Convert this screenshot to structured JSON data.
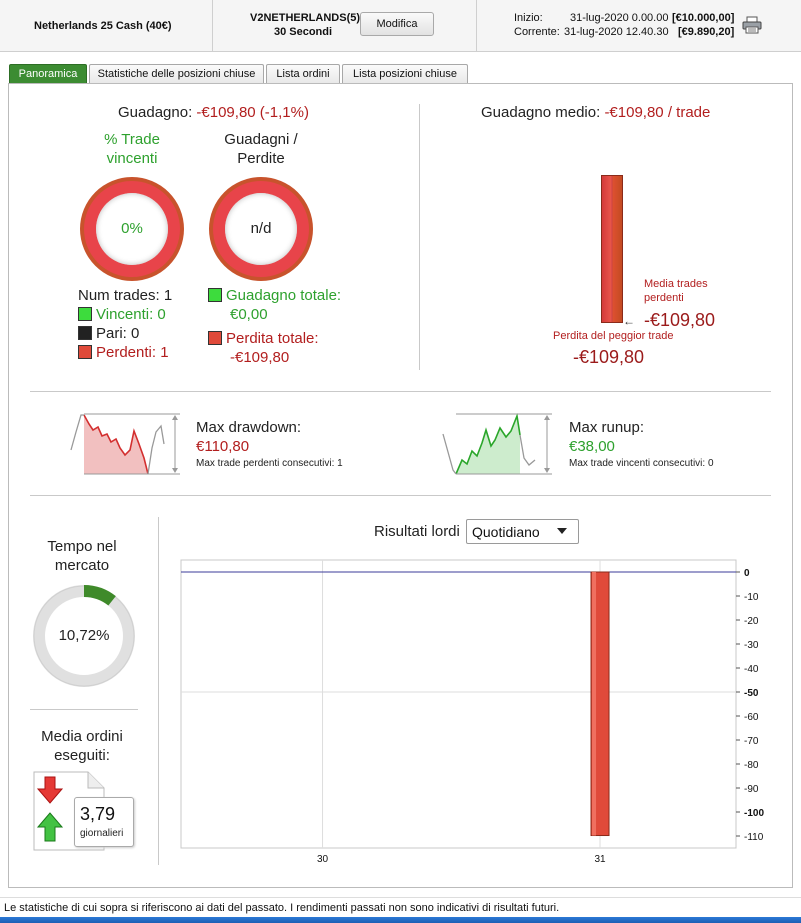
{
  "header": {
    "instrument": "Netherlands 25 Cash (40€)",
    "strategy_name": "V2NETHERLANDS(5)",
    "timeframe": "30 Secondi",
    "modify_button": "Modifica",
    "start_label": "Inizio:",
    "start_date": "31-lug-2020 0.00.00",
    "start_value": "[€10.000,00]",
    "current_label": "Corrente:",
    "current_date": "31-lug-2020 12.40.30",
    "current_value": "[€9.890,20]"
  },
  "tabs": [
    {
      "label": "Panoramica",
      "active": true
    },
    {
      "label": "Statistiche delle posizioni chiuse",
      "active": false
    },
    {
      "label": "Lista ordini",
      "active": false
    },
    {
      "label": "Lista posizioni chiuse",
      "active": false
    }
  ],
  "overview": {
    "gain_label": "Guadagno:",
    "gain_value": "-€109,80 (-1,1%)",
    "win_pct_title": "% Trade vincenti",
    "win_pct_value": "0%",
    "win_loss_title": "Guadagni / Perdite",
    "win_loss_value": "n/d",
    "num_trades": "Num trades: 1",
    "winners": "Vincenti: 0",
    "even": "Pari: 0",
    "losers": "Perdenti: 1",
    "total_gain_label": "Guadagno totale:",
    "total_gain_value": "€0,00",
    "total_loss_label": "Perdita totale:",
    "total_loss_value": "-€109,80",
    "avg_gain_label": "Guadagno medio:",
    "avg_gain_value": "-€109,80 / trade",
    "avg_trades_label": "Media trades perdenti",
    "avg_trades_value": "-€109,80",
    "worst_trade_label": "Perdita del peggior trade",
    "worst_trade_value": "-€109,80"
  },
  "drawdown": {
    "dd_label": "Max drawdown:",
    "dd_value": "€110,80",
    "dd_consecutive": "Max trade perdenti consecutivi:  1",
    "ru_label": "Max runup:",
    "ru_value": "€38,00",
    "ru_consecutive": "Max trade vincenti consecutivi: 0"
  },
  "market": {
    "time_title": "Tempo nel mercato",
    "time_value": "10,72%",
    "time_fraction": 0.1072,
    "orders_title": "Media ordini eseguiti:",
    "orders_value": "3,79",
    "orders_unit": "giornalieri"
  },
  "results": {
    "title": "Risultati lordi",
    "period_selected": "Quotidiano"
  },
  "chart_data": {
    "type": "bar",
    "categories": [
      "30",
      "31"
    ],
    "values": [
      0,
      -109.8
    ],
    "ylim": [
      -115,
      5
    ],
    "yticks": [
      "0",
      "-10",
      "-20",
      "-30",
      "-40",
      "-50",
      "-60",
      "-70",
      "-80",
      "-90",
      "-100",
      "-110"
    ],
    "bold_ticks": [
      "0",
      "-50",
      "-100"
    ],
    "grid": true,
    "bar_color": "#e04a3a"
  },
  "footer": "Le statistiche di cui sopra si riferiscono ai dati del passato. I rendimenti passati non sono indicativi di risultati futuri.",
  "colors": {
    "accent_green": "#3c8c32",
    "loss_red": "#b21e1e",
    "win_green": "#2ea12e"
  }
}
